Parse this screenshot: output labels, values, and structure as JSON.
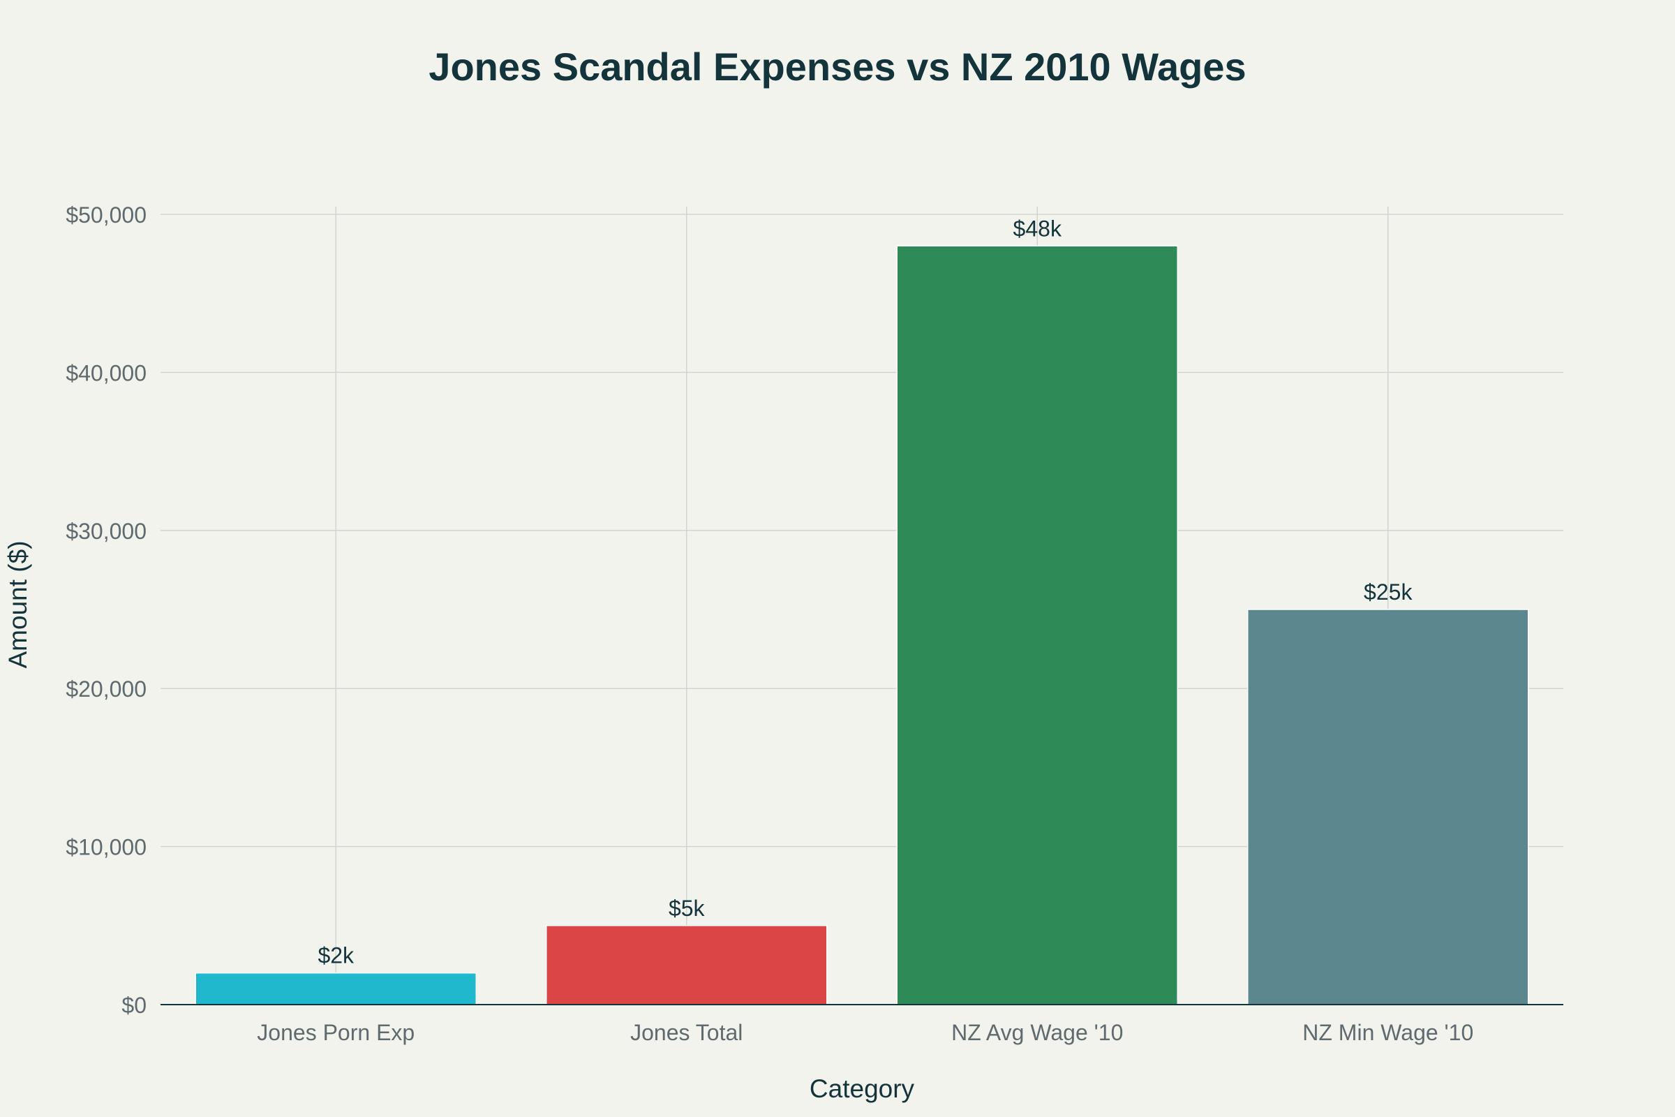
{
  "chart_data": {
    "type": "bar",
    "title": "Jones Scandal Expenses vs NZ 2010 Wages",
    "xlabel": "Category",
    "ylabel": "Amount ($)",
    "categories": [
      "Jones Porn Exp",
      "Jones Total",
      "NZ Avg Wage '10",
      "NZ Min Wage '10"
    ],
    "values": [
      2000,
      5000,
      48000,
      25000
    ],
    "data_labels": [
      "$2k",
      "$5k",
      "$48k",
      "$25k"
    ],
    "colors": [
      "#1fb8cd",
      "#db4545",
      "#2e8b57",
      "#5d878f"
    ],
    "ylim": [
      0,
      50000
    ],
    "yticks": [
      0,
      10000,
      20000,
      30000,
      40000,
      50000
    ],
    "ytick_labels": [
      "$0",
      "$10,000",
      "$20,000",
      "$30,000",
      "$40,000",
      "$50,000"
    ],
    "grid": true,
    "legend": "none"
  }
}
